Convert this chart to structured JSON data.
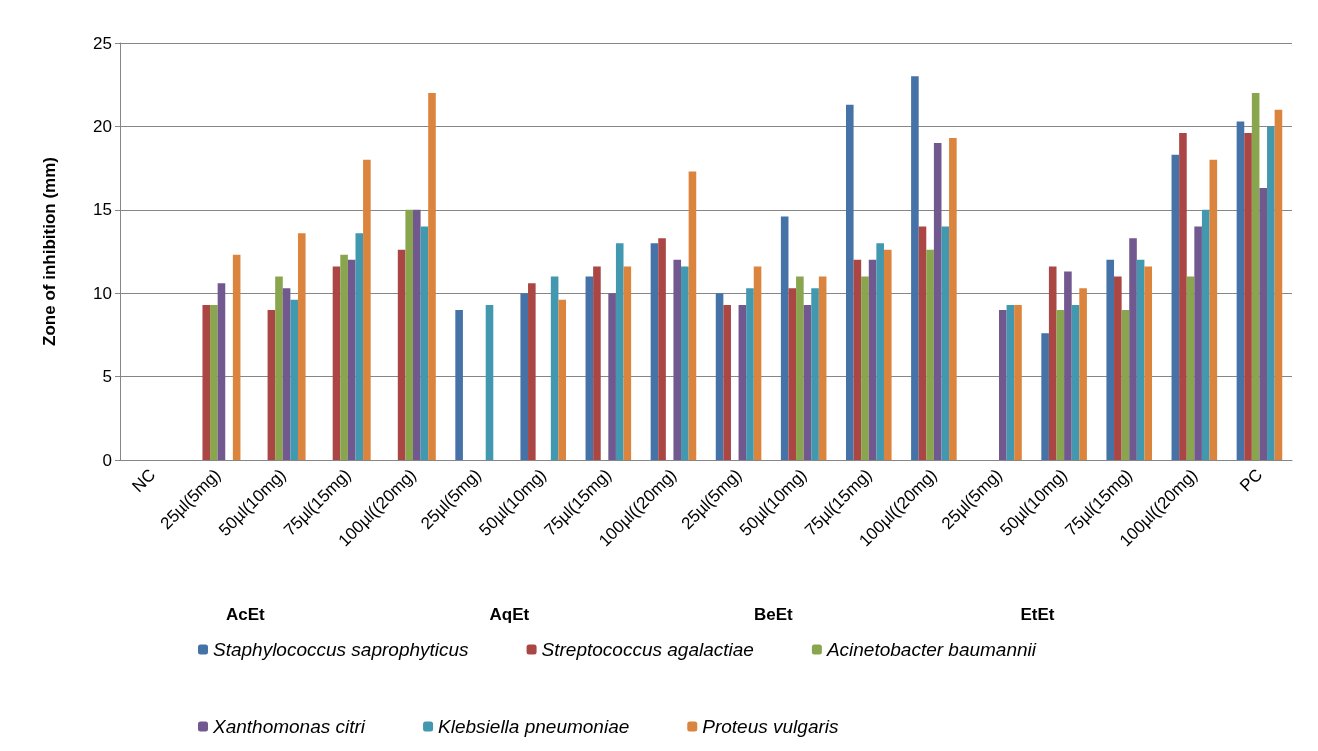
{
  "chart_data": {
    "type": "bar",
    "ylabel": "Zone of inhibition (mm)",
    "categories": [
      "NC",
      "25µl(5mg)",
      "50µl(10mg)",
      "75µl(15mg)",
      "100µl((20mg)",
      "25µl(5mg)",
      "50µl(10mg)",
      "75µl(15mg)",
      "100µl((20mg)",
      "25µl(5mg)",
      "50µl(10mg)",
      "75µl(15mg)",
      "100µl((20mg)",
      "25µl(5mg)",
      "50µl(10mg)",
      "75µl(15mg)",
      "100µl((20mg)",
      "PC"
    ],
    "series": [
      {
        "name": "Staphylococcus saprophyticus",
        "color": "#4572a7",
        "values": [
          null,
          null,
          null,
          null,
          null,
          9,
          10,
          11,
          13,
          10,
          14.6,
          21.3,
          23,
          null,
          7.6,
          12,
          18.3,
          20.3
        ]
      },
      {
        "name": "Streptococcus agalactiae",
        "color": "#aa4643",
        "values": [
          null,
          9.3,
          9,
          11.6,
          12.6,
          null,
          10.6,
          11.6,
          13.3,
          9.3,
          10.3,
          12,
          14,
          null,
          11.6,
          11,
          19.6,
          19.6
        ]
      },
      {
        "name": "Acinetobacter baumannii",
        "color": "#89a54e",
        "values": [
          null,
          9.3,
          11,
          12.3,
          15,
          null,
          null,
          null,
          null,
          null,
          11,
          11,
          12.6,
          null,
          9,
          9,
          11,
          22
        ]
      },
      {
        "name": "Xanthomonas citri",
        "color": "#71588f",
        "values": [
          null,
          10.6,
          10.3,
          12,
          15,
          null,
          null,
          10,
          12,
          9.3,
          9.3,
          12,
          19,
          9,
          11.3,
          13.3,
          14,
          16.3
        ]
      },
      {
        "name": "Klebsiella pneumoniae",
        "color": "#4198af",
        "values": [
          null,
          null,
          9.6,
          13.6,
          14,
          9.3,
          11,
          13,
          11.6,
          10.3,
          10.3,
          13,
          14,
          9.3,
          9.3,
          12,
          15,
          20
        ]
      },
      {
        "name": "Proteus vulgaris",
        "color": "#db843d",
        "values": [
          null,
          12.3,
          13.6,
          18,
          22,
          null,
          9.6,
          11.6,
          17.3,
          11.6,
          11,
          12.6,
          19.3,
          9.3,
          10.3,
          11.6,
          18,
          21
        ]
      }
    ],
    "annotations": [
      "AcEt",
      "AqEt",
      "BeEt",
      "EtEt"
    ],
    "ylim": [
      0,
      25
    ],
    "yticks": [
      0,
      5,
      10,
      15,
      20,
      25
    ],
    "grid": "y",
    "legend": "bottom"
  }
}
